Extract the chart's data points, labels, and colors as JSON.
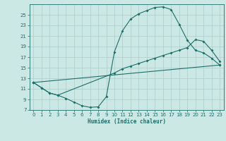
{
  "xlabel": "Humidex (Indice chaleur)",
  "bg_color": "#cce8e4",
  "grid_color": "#aaceca",
  "line_color": "#1e6e6a",
  "xlim": [
    -0.5,
    23.5
  ],
  "ylim": [
    7,
    27
  ],
  "xticks": [
    0,
    1,
    2,
    3,
    4,
    5,
    6,
    7,
    8,
    9,
    10,
    11,
    12,
    13,
    14,
    15,
    16,
    17,
    18,
    19,
    20,
    21,
    22,
    23
  ],
  "yticks": [
    7,
    9,
    11,
    13,
    15,
    17,
    19,
    21,
    23,
    25
  ],
  "line1_x": [
    0,
    1,
    2,
    3,
    4,
    5,
    6,
    7,
    8,
    9,
    10,
    11,
    12,
    13,
    14,
    15,
    16,
    17,
    18,
    19,
    20,
    21,
    22,
    23
  ],
  "line1_y": [
    12.2,
    11.2,
    10.2,
    9.8,
    9.2,
    8.5,
    7.8,
    7.5,
    7.6,
    9.5,
    18.0,
    22.0,
    24.2,
    25.2,
    25.8,
    26.4,
    26.5,
    26.0,
    23.2,
    20.2,
    18.3,
    17.8,
    16.8,
    15.5
  ],
  "line2_x": [
    0,
    1,
    2,
    3,
    10,
    11,
    12,
    13,
    14,
    15,
    16,
    17,
    18,
    19,
    20,
    21,
    22,
    23
  ],
  "line2_y": [
    12.2,
    11.2,
    10.2,
    9.8,
    14.0,
    14.8,
    15.3,
    15.8,
    16.3,
    16.8,
    17.3,
    17.8,
    18.3,
    18.8,
    20.3,
    20.0,
    18.3,
    16.2
  ],
  "line3_x": [
    0,
    23
  ],
  "line3_y": [
    12.2,
    15.5
  ]
}
